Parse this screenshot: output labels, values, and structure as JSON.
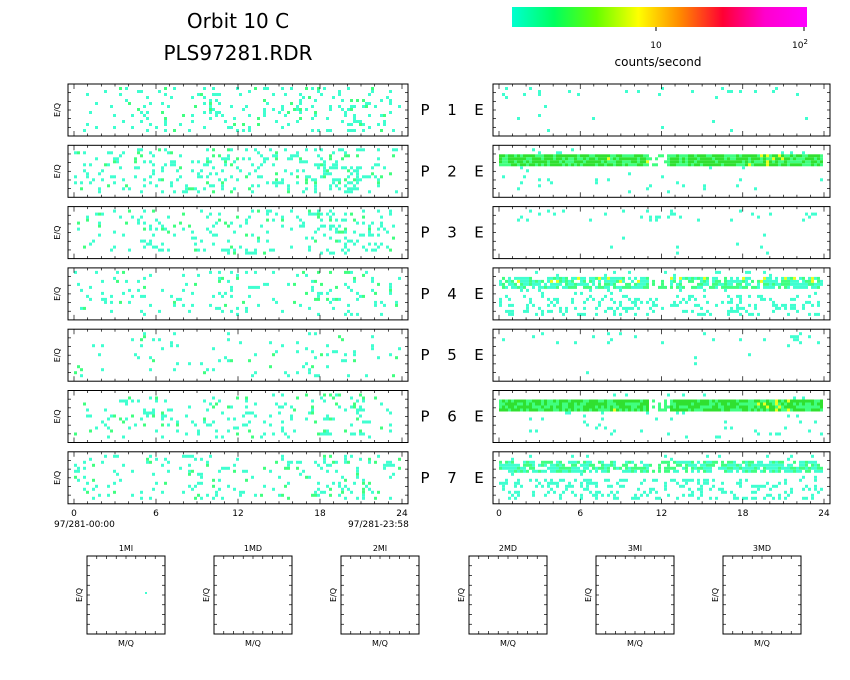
{
  "title_line1": "Orbit 10 C",
  "title_line2": "PLS97281.RDR",
  "colorbar": {
    "label": "counts/second",
    "tick_10": "10",
    "tick_100_base": "10",
    "tick_100_exp": "2",
    "colors": [
      "#00ffd0",
      "#00ff60",
      "#66ff00",
      "#ffff00",
      "#ff8800",
      "#ff0033",
      "#ff00cc",
      "#ff00ff"
    ]
  },
  "cell_colors": {
    "low": "#40ffd0",
    "mid": "#40ff80",
    "green": "#30e030",
    "yellow": "#e8ff20",
    "orange": "#ffa020"
  },
  "chart_data": {
    "type": "heatmap",
    "time_axis": {
      "ticks": [
        "0",
        "6",
        "12",
        "18",
        "24"
      ],
      "range": [
        0,
        24
      ]
    },
    "start_label": "97/281-00:00",
    "end_label": "97/281-23:58",
    "ylabel": "E/Q",
    "channels": [
      {
        "p": "P",
        "num": "1",
        "e": "E",
        "left_density": 0.12,
        "right_level": 0
      },
      {
        "p": "P",
        "num": "2",
        "e": "E",
        "left_density": 0.18,
        "right_level": 2
      },
      {
        "p": "P",
        "num": "3",
        "e": "E",
        "left_density": 0.14,
        "right_level": 0
      },
      {
        "p": "P",
        "num": "4",
        "e": "E",
        "left_density": 0.1,
        "right_level": 1
      },
      {
        "p": "P",
        "num": "5",
        "e": "E",
        "left_density": 0.06,
        "right_level": 0
      },
      {
        "p": "P",
        "num": "6",
        "e": "E",
        "left_density": 0.12,
        "right_level": 2
      },
      {
        "p": "P",
        "num": "7",
        "e": "E",
        "left_density": 0.13,
        "right_level": 1
      }
    ],
    "mass_panels": {
      "xlabel": "M/Q",
      "ylabel": "E/Q",
      "titles": [
        "1MI",
        "1MD",
        "2MI",
        "2MD",
        "3MI",
        "3MD"
      ]
    }
  }
}
